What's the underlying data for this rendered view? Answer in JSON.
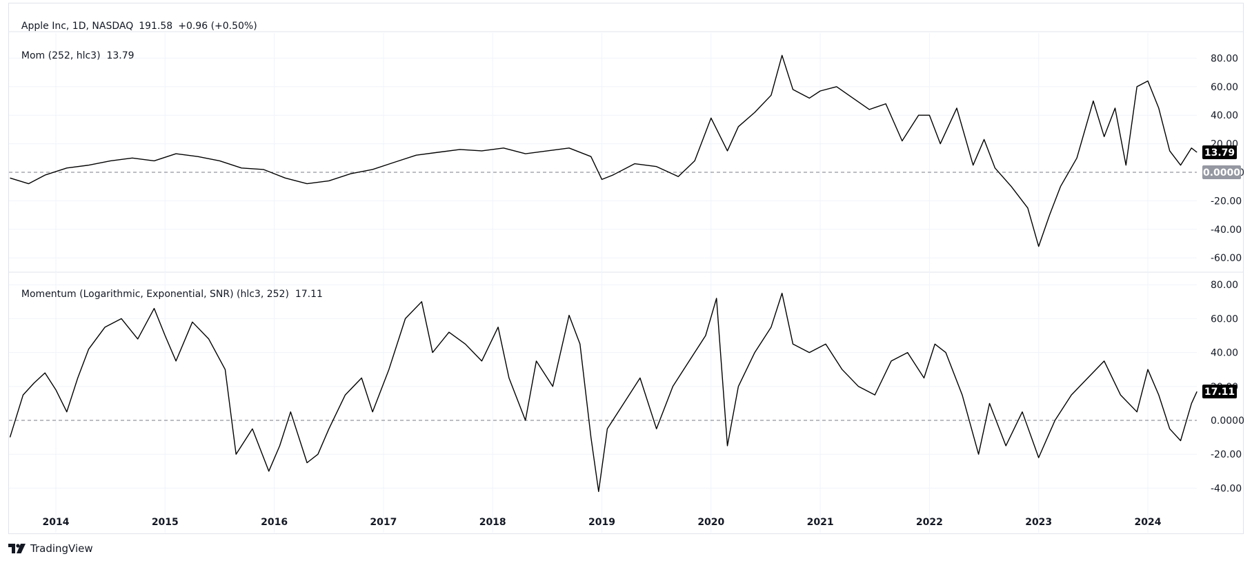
{
  "header": {
    "symbol_name": "Apple Inc, 1D, NASDAQ",
    "price": "191.58",
    "change": "+0.96 (+0.50%)"
  },
  "panes": {
    "mom": {
      "legend": "Mom (252, hlc3)",
      "value": "13.79",
      "zero_label": "0.0000"
    },
    "logmom": {
      "legend": "Momentum (Logarithmic, Exponential, SNR) (hlc3, 252)",
      "value": "17.11"
    }
  },
  "footer": {
    "brand": "TradingView"
  },
  "colors": {
    "line": "#000000",
    "zero_badge": "#9598a1",
    "value_badge": "#000000"
  },
  "chart_data": [
    {
      "type": "line",
      "title": "Mom (252, hlc3)",
      "ylim": [
        -65,
        90
      ],
      "yticks": [
        "80.00",
        "60.00",
        "40.00",
        "20.00",
        "0.0000",
        "-20.00",
        "-40.00",
        "-60.00"
      ],
      "grid": true,
      "series": [
        {
          "name": "Mom (252, hlc3)",
          "x": [
            2013.58,
            2013.75,
            2013.9,
            2014.1,
            2014.3,
            2014.5,
            2014.7,
            2014.9,
            2015.1,
            2015.3,
            2015.5,
            2015.7,
            2015.9,
            2016.1,
            2016.3,
            2016.5,
            2016.7,
            2016.9,
            2017.1,
            2017.3,
            2017.5,
            2017.7,
            2017.9,
            2018.1,
            2018.3,
            2018.5,
            2018.7,
            2018.9,
            2019.0,
            2019.1,
            2019.3,
            2019.5,
            2019.7,
            2019.85,
            2020.0,
            2020.15,
            2020.25,
            2020.4,
            2020.55,
            2020.65,
            2020.75,
            2020.9,
            2021.0,
            2021.15,
            2021.3,
            2021.45,
            2021.6,
            2021.75,
            2021.9,
            2022.0,
            2022.1,
            2022.25,
            2022.4,
            2022.5,
            2022.6,
            2022.75,
            2022.9,
            2023.0,
            2023.1,
            2023.2,
            2023.35,
            2023.5,
            2023.6,
            2023.7,
            2023.8,
            2023.9,
            2024.0,
            2024.1,
            2024.2,
            2024.3,
            2024.4,
            2024.45
          ],
          "values": [
            -4,
            -8,
            -2,
            3,
            5,
            8,
            10,
            8,
            13,
            11,
            8,
            3,
            2,
            -4,
            -8,
            -6,
            -1,
            2,
            7,
            12,
            14,
            16,
            15,
            17,
            13,
            15,
            17,
            11,
            -5,
            -2,
            6,
            4,
            -3,
            8,
            38,
            15,
            32,
            42,
            54,
            82,
            58,
            52,
            57,
            60,
            52,
            44,
            48,
            22,
            40,
            40,
            20,
            45,
            5,
            23,
            3,
            -10,
            -25,
            -52,
            -30,
            -10,
            10,
            50,
            25,
            45,
            5,
            60,
            64,
            45,
            15,
            5,
            17,
            14
          ]
        }
      ]
    },
    {
      "type": "line",
      "title": "Momentum (Logarithmic, Exponential, SNR) (hlc3, 252)",
      "ylim": [
        -45,
        85
      ],
      "yticks": [
        "80.00",
        "60.00",
        "40.00",
        "20.00",
        "0.0000",
        "-20.00",
        "-40.00"
      ],
      "grid": true,
      "series": [
        {
          "name": "Momentum (Logarithmic, Exponential, SNR) (hlc3, 252)",
          "x": [
            2013.58,
            2013.7,
            2013.8,
            2013.9,
            2014.0,
            2014.1,
            2014.2,
            2014.3,
            2014.45,
            2014.6,
            2014.75,
            2014.9,
            2015.0,
            2015.1,
            2015.25,
            2015.4,
            2015.55,
            2015.65,
            2015.8,
            2015.95,
            2016.05,
            2016.15,
            2016.3,
            2016.4,
            2016.5,
            2016.65,
            2016.8,
            2016.9,
            2017.05,
            2017.2,
            2017.35,
            2017.45,
            2017.6,
            2017.75,
            2017.9,
            2018.05,
            2018.15,
            2018.3,
            2018.4,
            2018.55,
            2018.7,
            2018.8,
            2018.9,
            2018.97,
            2019.05,
            2019.2,
            2019.35,
            2019.5,
            2019.65,
            2019.8,
            2019.95,
            2020.05,
            2020.15,
            2020.25,
            2020.4,
            2020.55,
            2020.65,
            2020.75,
            2020.9,
            2021.05,
            2021.2,
            2021.35,
            2021.5,
            2021.65,
            2021.8,
            2021.95,
            2022.05,
            2022.15,
            2022.3,
            2022.45,
            2022.55,
            2022.7,
            2022.85,
            2023.0,
            2023.15,
            2023.3,
            2023.45,
            2023.6,
            2023.75,
            2023.9,
            2024.0,
            2024.1,
            2024.2,
            2024.3,
            2024.4,
            2024.45
          ],
          "values": [
            -10,
            15,
            22,
            28,
            18,
            5,
            25,
            42,
            55,
            60,
            48,
            66,
            50,
            35,
            58,
            48,
            30,
            -20,
            -5,
            -30,
            -15,
            5,
            -25,
            -20,
            -5,
            15,
            25,
            5,
            30,
            60,
            70,
            40,
            52,
            45,
            35,
            55,
            25,
            0,
            35,
            20,
            62,
            45,
            -10,
            -42,
            -5,
            10,
            25,
            -5,
            20,
            35,
            50,
            72,
            -15,
            20,
            40,
            55,
            75,
            45,
            40,
            45,
            30,
            20,
            15,
            35,
            40,
            25,
            45,
            40,
            15,
            -20,
            10,
            -15,
            5,
            -22,
            0,
            15,
            25,
            35,
            15,
            5,
            30,
            15,
            -5,
            -12,
            10,
            17
          ]
        }
      ]
    }
  ],
  "x_axis_labels": [
    "2014",
    "2015",
    "2016",
    "2017",
    "2018",
    "2019",
    "2020",
    "2021",
    "2022",
    "2023",
    "2024"
  ]
}
